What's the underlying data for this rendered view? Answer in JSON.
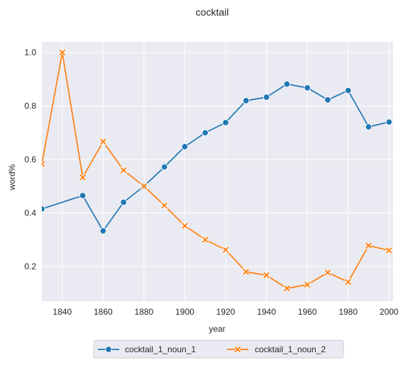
{
  "chart_data": {
    "type": "line",
    "title": "cocktail",
    "xlabel": "year",
    "ylabel": "word%",
    "xlim": [
      1830,
      2002
    ],
    "ylim": [
      0.07,
      1.04
    ],
    "xticks": [
      1840,
      1860,
      1880,
      1900,
      1920,
      1940,
      1960,
      1980,
      2000
    ],
    "yticks": [
      0.2,
      0.4,
      0.6,
      0.8,
      1.0
    ],
    "xtick_labels": [
      "1840",
      "1860",
      "1880",
      "1900",
      "1920",
      "1940",
      "1960",
      "1980",
      "2000"
    ],
    "ytick_labels": [
      "0.2",
      "0.4",
      "0.6",
      "0.8",
      "1.0"
    ],
    "grid": true,
    "legend_position": "below",
    "series": [
      {
        "name": "cocktail_1_noun_1",
        "color": "#1f77b4",
        "marker": "circle",
        "x": [
          1830,
          1850,
          1860,
          1870,
          1880,
          1890,
          1900,
          1910,
          1920,
          1930,
          1940,
          1950,
          1960,
          1970,
          1980,
          1990,
          2000
        ],
        "y": [
          0.415,
          0.465,
          0.333,
          0.44,
          0.5,
          0.572,
          0.648,
          0.7,
          0.738,
          0.82,
          0.833,
          0.882,
          0.868,
          0.823,
          0.858,
          0.722,
          0.74
        ]
      },
      {
        "name": "cocktail_1_noun_2",
        "color": "#ff7f0e",
        "marker": "x",
        "x": [
          1830,
          1840,
          1850,
          1860,
          1870,
          1880,
          1890,
          1900,
          1910,
          1920,
          1930,
          1940,
          1950,
          1960,
          1970,
          1980,
          1990,
          2000
        ],
        "y": [
          0.583,
          1.0,
          0.533,
          0.667,
          0.56,
          0.5,
          0.428,
          0.352,
          0.3,
          0.262,
          0.18,
          0.167,
          0.118,
          0.132,
          0.177,
          0.142,
          0.278,
          0.26
        ]
      }
    ]
  }
}
